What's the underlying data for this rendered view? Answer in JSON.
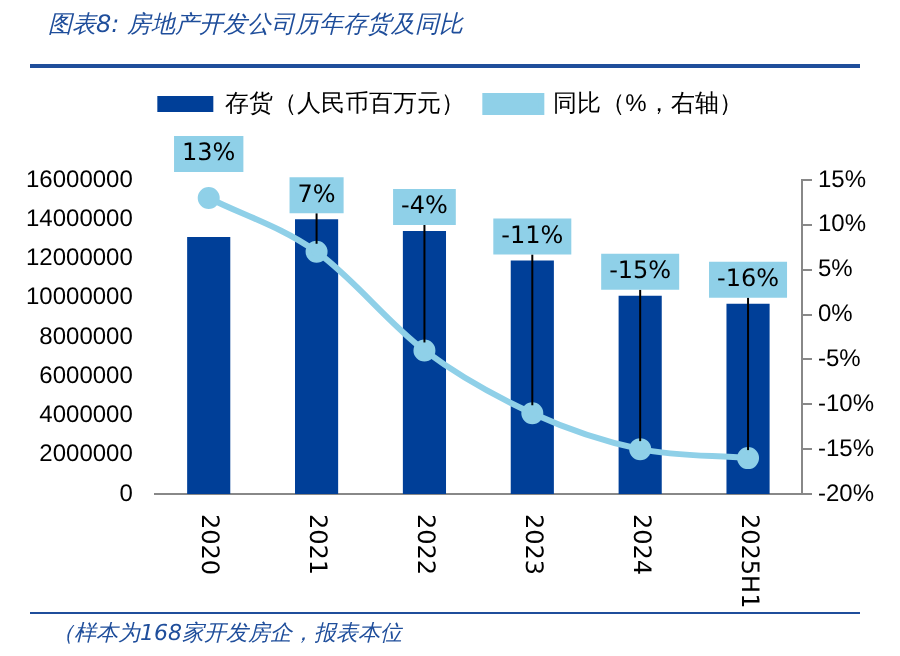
{
  "chart_data": {
    "type": "bar",
    "title": "图表8: 房地产开发公司历年存货及同比",
    "categories": [
      "2020",
      "2021",
      "2022",
      "2023",
      "2024",
      "2025H1"
    ],
    "series": [
      {
        "name": "存货（人民币百万元）",
        "color": "#003f98",
        "values": [
          13100000,
          14000000,
          13400000,
          11900000,
          10100000,
          9700000
        ]
      },
      {
        "name": "同比（%，右轴）",
        "type": "line",
        "axis": "y2",
        "color": "#8fd0e8",
        "values": [
          13,
          7,
          -4,
          -11,
          -15,
          -16
        ],
        "value_labels": [
          "13%",
          "7%",
          "-4%",
          "-11%",
          "-15%",
          "-16%"
        ]
      }
    ],
    "ylim": [
      0,
      16000000
    ],
    "yticks": [
      0,
      2000000,
      4000000,
      6000000,
      8000000,
      10000000,
      12000000,
      14000000,
      16000000
    ],
    "y2lim": [
      -20,
      15
    ],
    "y2ticks": [
      {
        "value": -20,
        "label": "-20%"
      },
      {
        "value": -15,
        "label": "-15%"
      },
      {
        "value": -10,
        "label": "-10%"
      },
      {
        "value": -5,
        "label": "-5%"
      },
      {
        "value": 0,
        "label": "0%"
      },
      {
        "value": 5,
        "label": "5%"
      },
      {
        "value": 10,
        "label": "10%"
      },
      {
        "value": 15,
        "label": "15%"
      }
    ],
    "legend": "top",
    "grid": false,
    "marker": "circle",
    "annotations": [
      "（样本为168家开发房企，报表本位"
    ]
  }
}
